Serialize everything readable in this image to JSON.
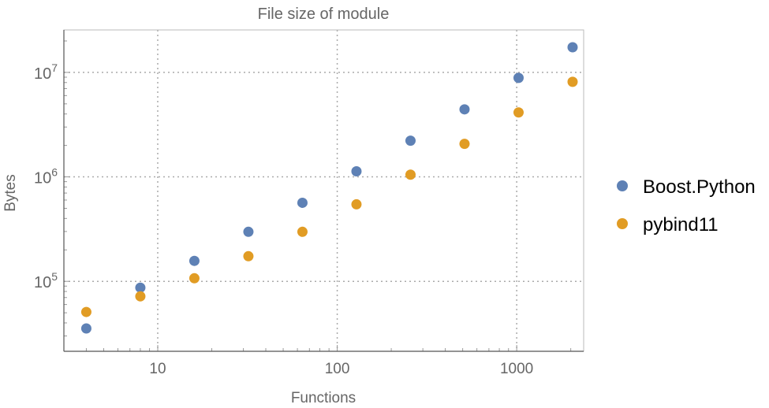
{
  "chart_data": {
    "type": "scatter",
    "title": "File size of module",
    "xlabel": "Functions",
    "ylabel": "Bytes",
    "xscale": "log",
    "yscale": "log",
    "xlim": [
      3.0,
      2360
    ],
    "ylim": [
      21400,
      25500000
    ],
    "grid": true,
    "legend_position": "right",
    "x_ticks": [
      {
        "value": 10,
        "label": "10"
      },
      {
        "value": 100,
        "label": "100"
      },
      {
        "value": 1000,
        "label": "1000"
      }
    ],
    "y_ticks": [
      {
        "value": 100000,
        "base": "10",
        "exp": "5"
      },
      {
        "value": 1000000,
        "base": "10",
        "exp": "6"
      },
      {
        "value": 10000000,
        "base": "10",
        "exp": "7"
      }
    ],
    "x": [
      4,
      8,
      16,
      32,
      64,
      128,
      256,
      512,
      1024,
      2048
    ],
    "series": [
      {
        "name": "Boost.Python",
        "color": "#5e81b5",
        "values": [
          35400,
          87000,
          157000,
          298000,
          565000,
          1130000,
          2220000,
          4430000,
          8860000,
          17400000
        ]
      },
      {
        "name": "pybind11",
        "color": "#e19c24",
        "values": [
          50900,
          71900,
          107000,
          174000,
          298000,
          546000,
          1050000,
          2070000,
          4140000,
          8130000
        ]
      }
    ]
  }
}
